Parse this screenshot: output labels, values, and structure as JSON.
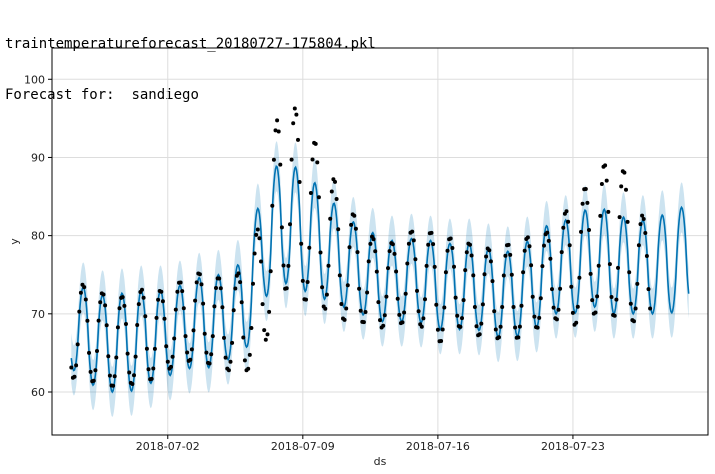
{
  "header": {
    "line1": "traintemperatureforecast_20180727-175804.pkl",
    "line2_label": "Forecast for:",
    "line2_city": "sandiego"
  },
  "chart_data": {
    "type": "line",
    "title": "",
    "xlabel": "ds",
    "ylabel": "y",
    "x_range": [
      "2018-06-26",
      "2018-07-30"
    ],
    "ylim": [
      54.5,
      104
    ],
    "x_ticks": [
      "2018-07-02",
      "2018-07-09",
      "2018-07-16",
      "2018-07-23"
    ],
    "y_ticks": [
      60,
      70,
      80,
      90,
      100
    ],
    "grid": true,
    "colors": {
      "forecast_line": "#0072B2",
      "uncertainty_band": "#0072B2",
      "observed_points": "#000000",
      "grid": "#dddddd"
    },
    "series": [
      {
        "kind": "forecast",
        "start_date": "2018-06-27",
        "end_date": "2018-07-29",
        "daily_max": [
          74,
          73,
          72,
          73,
          73,
          73,
          74,
          75,
          75,
          77,
          87,
          90,
          88,
          86,
          83,
          81,
          80,
          79,
          80,
          79,
          79,
          79,
          78,
          78,
          80,
          82,
          82,
          84,
          83,
          82,
          82,
          83,
          84
        ],
        "daily_min": [
          63,
          61,
          60,
          60,
          61,
          62,
          63,
          63,
          64,
          65,
          72,
          74,
          73,
          72,
          71,
          70,
          69,
          69,
          69,
          68,
          68,
          68,
          67,
          67,
          68,
          70,
          70,
          71,
          70,
          70,
          70,
          70,
          71
        ],
        "interval_half_width": 3.2
      },
      {
        "kind": "observed",
        "start_date": "2018-06-27",
        "end_date": "2018-07-27",
        "daily_max": [
          75,
          73,
          72,
          72,
          74,
          73,
          75,
          75,
          74,
          76,
          84,
          101,
          93,
          91,
          85,
          82,
          79,
          79,
          81,
          80,
          80,
          79,
          78,
          79,
          80,
          81,
          85,
          87,
          90,
          87,
          80
        ],
        "daily_min": [
          61.5,
          61.5,
          61,
          61,
          61,
          62.5,
          64,
          64,
          63,
          62,
          65.5,
          73,
          72,
          71,
          69,
          68.5,
          68,
          69,
          69,
          66,
          68,
          67,
          67,
          67,
          68,
          69,
          68,
          70,
          70,
          69,
          69
        ]
      }
    ]
  }
}
